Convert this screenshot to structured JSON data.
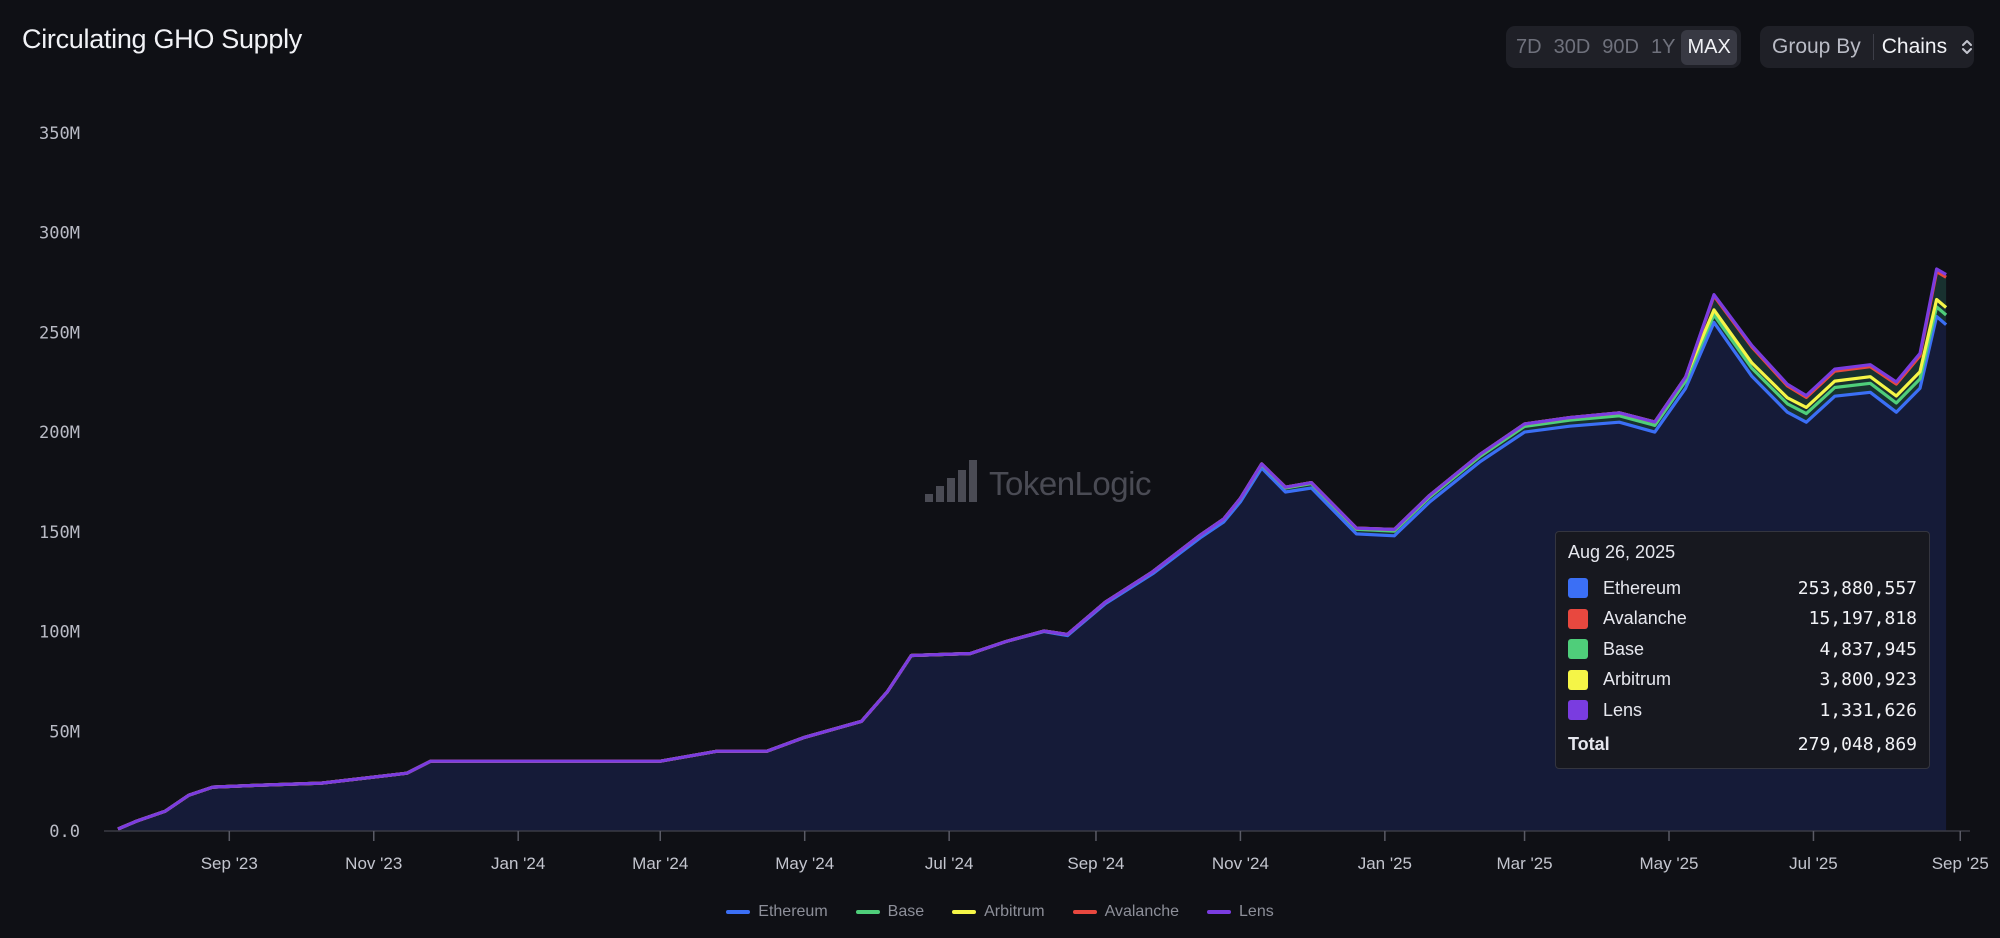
{
  "header": {
    "title": "Circulating GHO Supply",
    "ranges": [
      "7D",
      "30D",
      "90D",
      "1Y",
      "MAX"
    ],
    "active_range": "MAX",
    "group_by_label": "Group By",
    "group_by_value": "Chains",
    "group_by_icon": "chevron-updown-icon"
  },
  "watermark": {
    "text": "TokenLogic",
    "icon": "bar-logo-icon"
  },
  "tooltip": {
    "date": "Aug 26, 2025",
    "rows": [
      {
        "name": "Ethereum",
        "value": "253,880,557",
        "color": "#3b6ff5"
      },
      {
        "name": "Avalanche",
        "value": "15,197,818",
        "color": "#e8483f"
      },
      {
        "name": "Base",
        "value": "4,837,945",
        "color": "#4fce7a"
      },
      {
        "name": "Arbitrum",
        "value": "3,800,923",
        "color": "#f5f547"
      },
      {
        "name": "Lens",
        "value": "1,331,626",
        "color": "#7a3ce0"
      }
    ],
    "total_label": "Total",
    "total_value": "279,048,869"
  },
  "chart_data": {
    "type": "area",
    "title": "Circulating GHO Supply",
    "stacked": true,
    "y_tick_labels": [
      "0.0",
      "50M",
      "100M",
      "150M",
      "200M",
      "250M",
      "300M",
      "350M"
    ],
    "ylim": [
      0,
      350000000
    ],
    "x_tick_labels": [
      "Sep '23",
      "Nov '23",
      "Jan '24",
      "Mar '24",
      "May '24",
      "Jul '24",
      "Sep '24",
      "Nov '24",
      "Jan '25",
      "Mar '25",
      "May '25",
      "Jul '25",
      "Sep '25"
    ],
    "x_tick_dates": [
      "2023-09-01",
      "2023-11-01",
      "2024-01-01",
      "2024-03-01",
      "2024-05-01",
      "2024-07-01",
      "2024-09-01",
      "2024-11-01",
      "2025-01-01",
      "2025-03-01",
      "2025-05-01",
      "2025-07-01",
      "2025-09-01"
    ],
    "xlim": [
      "2023-07-16",
      "2025-09-03"
    ],
    "grid": false,
    "legend_position": "bottom",
    "x": [
      "2023-07-16",
      "2023-07-24",
      "2023-08-05",
      "2023-08-15",
      "2023-08-25",
      "2023-09-15",
      "2023-10-10",
      "2023-11-15",
      "2023-11-25",
      "2023-12-15",
      "2024-01-15",
      "2024-02-15",
      "2024-03-01",
      "2024-03-25",
      "2024-04-15",
      "2024-05-01",
      "2024-05-25",
      "2024-06-05",
      "2024-06-15",
      "2024-07-10",
      "2024-07-25",
      "2024-08-10",
      "2024-08-20",
      "2024-09-05",
      "2024-09-25",
      "2024-10-15",
      "2024-10-25",
      "2024-11-01",
      "2024-11-10",
      "2024-11-20",
      "2024-12-01",
      "2024-12-20",
      "2025-01-05",
      "2025-01-20",
      "2025-02-10",
      "2025-03-01",
      "2025-03-20",
      "2025-04-10",
      "2025-04-25",
      "2025-05-08",
      "2025-05-20",
      "2025-06-05",
      "2025-06-20",
      "2025-06-28",
      "2025-07-10",
      "2025-07-25",
      "2025-08-05",
      "2025-08-15",
      "2025-08-22",
      "2025-08-26"
    ],
    "series": [
      {
        "name": "Ethereum",
        "color": "#3b6ff5",
        "values": [
          1000000,
          5000000,
          10000000,
          18000000,
          22000000,
          23000000,
          24000000,
          29000000,
          35000000,
          35000000,
          35000000,
          35000000,
          35000000,
          40000000,
          40000000,
          47000000,
          55000000,
          70000000,
          88000000,
          89000000,
          95000000,
          100000000,
          98000000,
          114000000,
          129000000,
          147000000,
          155000000,
          165000000,
          182000000,
          170000000,
          172000000,
          149000000,
          148000000,
          165000000,
          185000000,
          200000000,
          203000000,
          205000000,
          200000000,
          222000000,
          255000000,
          228000000,
          210000000,
          205000000,
          218000000,
          220000000,
          210000000,
          222000000,
          258000000,
          253880557
        ]
      },
      {
        "name": "Base",
        "values": [
          0,
          0,
          0,
          0,
          0,
          0,
          0,
          0,
          0,
          0,
          0,
          0,
          0,
          0,
          0,
          0,
          0,
          0,
          0,
          0,
          0,
          300000,
          600000,
          800000,
          1000000,
          1300000,
          1500000,
          1600000,
          1800000,
          2000000,
          2200000,
          2300000,
          2400000,
          2500000,
          2700000,
          2900000,
          3000000,
          3200000,
          3400000,
          3600000,
          3800000,
          4000000,
          4200000,
          4300000,
          4400000,
          4500000,
          4600000,
          4700000,
          4800000,
          4837945
        ]
      },
      {
        "name": "Arbitrum",
        "values": [
          0,
          0,
          0,
          0,
          0,
          0,
          0,
          0,
          0,
          0,
          0,
          0,
          0,
          0,
          0,
          0,
          0,
          0,
          0,
          0,
          0,
          0,
          0,
          0,
          0,
          0,
          0,
          200000,
          300000,
          400000,
          500000,
          600000,
          800000,
          900000,
          1000000,
          1200000,
          1300000,
          1500000,
          1700000,
          2000000,
          2500000,
          2700000,
          3000000,
          3100000,
          3200000,
          3300000,
          3500000,
          3600000,
          3700000,
          3800923
        ]
      },
      {
        "name": "Avalanche",
        "values": [
          0,
          0,
          0,
          0,
          0,
          0,
          0,
          0,
          0,
          0,
          0,
          0,
          0,
          0,
          0,
          0,
          0,
          0,
          0,
          0,
          0,
          0,
          0,
          0,
          0,
          0,
          0,
          0,
          0,
          0,
          0,
          0,
          0,
          0,
          0,
          0,
          0,
          0,
          0,
          0,
          7000000,
          8000000,
          6000000,
          5000000,
          5000000,
          5000000,
          6000000,
          8000000,
          14000000,
          15197818
        ]
      },
      {
        "name": "Lens",
        "values": [
          0,
          0,
          0,
          0,
          0,
          0,
          0,
          0,
          0,
          0,
          0,
          0,
          0,
          0,
          0,
          0,
          0,
          0,
          0,
          0,
          0,
          0,
          0,
          0,
          0,
          0,
          0,
          0,
          0,
          0,
          0,
          0,
          0,
          0,
          0,
          0,
          0,
          0,
          0,
          0,
          600000,
          700000,
          800000,
          900000,
          1000000,
          1000000,
          1100000,
          1200000,
          1300000,
          1331626
        ]
      }
    ]
  },
  "legend": [
    {
      "name": "Ethereum",
      "color": "#3b6ff5"
    },
    {
      "name": "Base",
      "color": "#4fce7a"
    },
    {
      "name": "Arbitrum",
      "color": "#f5f547"
    },
    {
      "name": "Avalanche",
      "color": "#e8483f"
    },
    {
      "name": "Lens",
      "color": "#7a3ce0"
    }
  ]
}
